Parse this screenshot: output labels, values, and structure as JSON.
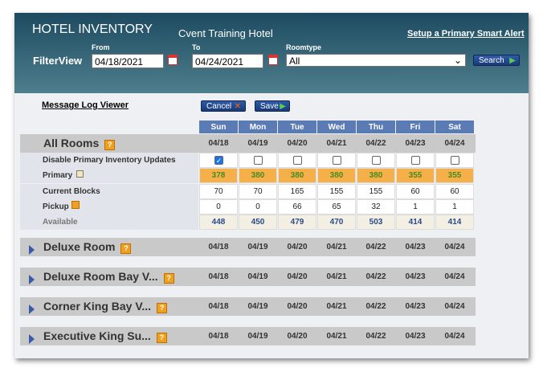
{
  "header": {
    "title": "HOTEL INVENTORY",
    "hotel": "Cvent Training Hotel",
    "link": "Setup a Primary Smart Alert",
    "filter_label": "FilterView",
    "from_label": "From",
    "from": "04/18/2021",
    "to_label": "To",
    "to": "04/24/2021",
    "roomtype_label": "Roomtype",
    "roomtype": "All",
    "search": "Search"
  },
  "toolbar": {
    "message_log": "Message Log Viewer",
    "cancel": "Cancel",
    "save": "Save"
  },
  "days": [
    "Sun",
    "Mon",
    "Tue",
    "Wed",
    "Thu",
    "Fri",
    "Sat"
  ],
  "dates": [
    "04/18",
    "04/19",
    "04/20",
    "04/21",
    "04/22",
    "04/23",
    "04/24"
  ],
  "all_rooms": {
    "name": "All Rooms",
    "disable": {
      "label": "Disable Primary Inventory Updates",
      "checked": [
        true,
        false,
        false,
        false,
        false,
        false,
        false
      ]
    },
    "rows": [
      {
        "label": "Primary",
        "values": [
          378,
          380,
          380,
          380,
          380,
          355,
          355
        ]
      },
      {
        "label": "Current Blocks",
        "values": [
          70,
          70,
          165,
          155,
          155,
          60,
          60
        ]
      },
      {
        "label": "Pickup",
        "values": [
          0,
          0,
          66,
          65,
          32,
          1,
          1
        ]
      },
      {
        "label": "Available",
        "values": [
          448,
          450,
          479,
          470,
          503,
          414,
          414
        ]
      }
    ]
  },
  "room_types": [
    "Deluxe Room",
    "Deluxe Room Bay V...",
    "Corner King Bay V...",
    "Executive King Su..."
  ]
}
